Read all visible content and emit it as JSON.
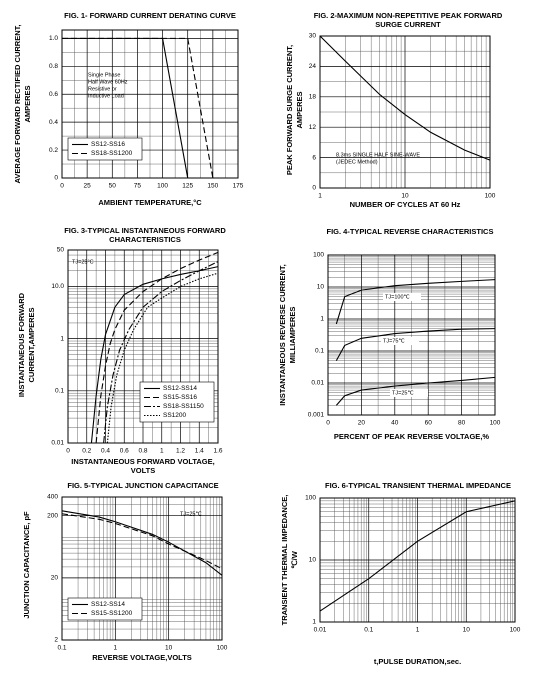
{
  "chart_data": [
    {
      "type": "line",
      "title": [
        "FIG. 1- FORWARD CURRENT DERATING CURVE"
      ],
      "xlabel": [
        "AMBIENT TEMPERATURE,°C"
      ],
      "ylabel": [
        "AVERAGE FORWARD RECTIFIED CURRENT,",
        "AMPERES"
      ],
      "xlim": [
        0,
        175
      ],
      "xticks": [
        0,
        25,
        50,
        75,
        100,
        125,
        150,
        175
      ],
      "ylim": [
        0,
        1.06
      ],
      "yticks": [
        0,
        0.2,
        0.4,
        0.6,
        0.8,
        {
          "value": 1,
          "label": "1.0"
        }
      ],
      "grid": true,
      "legend": "lower left",
      "annotations": [
        [
          "Single Phase",
          "Half Wave 60Hz",
          "Resistive or",
          "Inductive Load"
        ]
      ],
      "series": [
        {
          "name": "SS12-SS16",
          "color": "#000000",
          "style": "solid",
          "x": [
            0,
            100,
            125
          ],
          "values": [
            1,
            1,
            0
          ]
        },
        {
          "name": "SS18-SS1200",
          "color": "#000000",
          "style": "dashed",
          "x": [
            0,
            125,
            150
          ],
          "values": [
            1,
            1,
            0
          ]
        }
      ]
    },
    {
      "type": "line",
      "title": [
        "FIG. 2-MAXIMUM NON-REPETITIVE PEAK FORWARD",
        "SURGE CURRENT"
      ],
      "xlabel": [
        "NUMBER OF CYCLES AT 60 Hz"
      ],
      "ylabel": [
        "PEAK FORWARD SURGE CURRENT,",
        "AMPERES"
      ],
      "xscale": "log",
      "xlim": [
        1,
        100
      ],
      "xticks": [
        1,
        10,
        100
      ],
      "ylim": [
        0,
        30
      ],
      "yticks": [
        0,
        6,
        12,
        18,
        24,
        30
      ],
      "grid": true,
      "annotations": [
        [
          "8.3ms SINGLE HALF SINE-WAVE",
          "(JEDEC Method)"
        ]
      ],
      "series": [
        {
          "color": "#000000",
          "style": "solid",
          "x": [
            1,
            2,
            5,
            10,
            20,
            50,
            100
          ],
          "values": [
            30,
            25,
            18.5,
            14.5,
            11,
            7.5,
            5.5
          ]
        }
      ]
    },
    {
      "type": "line",
      "title": [
        "FIG. 3-TYPICAL INSTANTANEOUS FORWARD",
        "CHARACTERISTICS"
      ],
      "xlabel": [
        "INSTANTANEOUS FORWARD VOLTAGE,",
        "VOLTS"
      ],
      "ylabel": [
        "INSTANTANEOUS FORWARD",
        "CURRENT,AMPERES"
      ],
      "xlim": [
        0,
        1.6
      ],
      "xticks": [
        0,
        0.2,
        0.4,
        0.6,
        0.8,
        1.0,
        1.2,
        1.4,
        1.6
      ],
      "yscale": "log",
      "ylim": [
        0.01,
        50
      ],
      "yticks": [
        0.01,
        0.1,
        1,
        {
          "value": 10,
          "label": "10.0"
        },
        50
      ],
      "grid": true,
      "legend": "lower right",
      "annotations": [
        [
          "TJ=25°C"
        ]
      ],
      "series": [
        {
          "name": "SS12-SS14",
          "color": "#000000",
          "style": "solid",
          "x": [
            0.25,
            0.3,
            0.35,
            0.4,
            0.5,
            0.6,
            0.8,
            1.0,
            1.2,
            1.4,
            1.6
          ],
          "values": [
            0.01,
            0.08,
            0.4,
            1.2,
            4,
            7,
            11,
            14,
            17,
            20,
            24
          ]
        },
        {
          "name": "SS15-SS16",
          "color": "#000000",
          "style": "dashed",
          "x": [
            0.3,
            0.35,
            0.4,
            0.45,
            0.5,
            0.6,
            0.8,
            1.0,
            1.2,
            1.4,
            1.6
          ],
          "values": [
            0.01,
            0.08,
            0.3,
            0.8,
            1.5,
            3.5,
            8,
            14,
            22,
            32,
            45
          ]
        },
        {
          "name": "SS18-SS1150",
          "color": "#000000",
          "style": "dashdot",
          "x": [
            0.38,
            0.42,
            0.48,
            0.55,
            0.65,
            0.8,
            1.0,
            1.2,
            1.4,
            1.6
          ],
          "values": [
            0.01,
            0.05,
            0.2,
            0.6,
            1.5,
            4,
            8,
            13,
            20,
            30
          ]
        },
        {
          "name": "SS1200",
          "color": "#000000",
          "style": "dotted",
          "x": [
            0.42,
            0.46,
            0.52,
            0.6,
            0.7,
            0.85,
            1.0,
            1.2,
            1.4,
            1.6
          ],
          "values": [
            0.01,
            0.05,
            0.2,
            0.6,
            1.5,
            4,
            6,
            10,
            14,
            18
          ]
        }
      ]
    },
    {
      "type": "line",
      "title": [
        "FIG. 4-TYPICAL REVERSE CHARACTERISTICS"
      ],
      "xlabel": [
        "PERCENT OF PEAK REVERSE VOLTAGE,%"
      ],
      "ylabel": [
        "INSTANTANEOUS REVERSE CURRENT,",
        "MILLIAMPERES"
      ],
      "xlim": [
        0,
        100
      ],
      "xticks": [
        0,
        20,
        40,
        60,
        80,
        100
      ],
      "yscale": "log",
      "ylim": [
        0.001,
        100
      ],
      "yticks": [
        0.001,
        0.01,
        0.1,
        1,
        10,
        100
      ],
      "grid": true,
      "legend": "inline",
      "series": [
        {
          "name": "TJ=100℃",
          "color": "#000000",
          "style": "solid",
          "x": [
            5,
            10,
            20,
            40,
            60,
            80,
            100
          ],
          "values": [
            0.7,
            5,
            8,
            11,
            13,
            15,
            17
          ]
        },
        {
          "name": "TJ=75℃",
          "color": "#000000",
          "style": "solid",
          "x": [
            5,
            10,
            20,
            40,
            60,
            80,
            100
          ],
          "values": [
            0.05,
            0.15,
            0.25,
            0.35,
            0.42,
            0.48,
            0.5
          ]
        },
        {
          "name": "TJ=25℃",
          "color": "#000000",
          "style": "solid",
          "x": [
            5,
            10,
            20,
            40,
            60,
            80,
            100
          ],
          "values": [
            0.002,
            0.004,
            0.006,
            0.008,
            0.01,
            0.012,
            0.015
          ]
        }
      ]
    },
    {
      "type": "line",
      "title": [
        "FIG. 5-TYPICAL JUNCTION CAPACITANCE"
      ],
      "xlabel": [
        "REVERSE VOLTAGE,VOLTS"
      ],
      "ylabel": [
        "JUNCTION CAPACITANCE, pF"
      ],
      "xscale": "log",
      "xlim": [
        0.1,
        100
      ],
      "xticks": [
        0.1,
        1,
        10,
        100
      ],
      "yscale": "log",
      "ylim": [
        2,
        400
      ],
      "yticks": [
        2,
        20,
        200,
        400
      ],
      "grid": true,
      "legend": "lower left",
      "annotations": [
        [
          "TJ=25℃"
        ]
      ],
      "series": [
        {
          "name": "SS12-SS14",
          "color": "#000000",
          "style": "solid",
          "x": [
            0.1,
            0.5,
            1,
            5,
            10,
            50,
            100
          ],
          "values": [
            240,
            190,
            160,
            100,
            75,
            35,
            22
          ]
        },
        {
          "name": "SS15-SS1200",
          "color": "#000000",
          "style": "dashed",
          "x": [
            0.1,
            0.5,
            1,
            5,
            10,
            50,
            100
          ],
          "values": [
            215,
            175,
            150,
            95,
            70,
            38,
            28
          ]
        }
      ]
    },
    {
      "type": "line",
      "title": [
        "FIG. 6-TYPICAL TRANSIENT THERMAL IMPEDANCE"
      ],
      "xlabel": [
        "t,PULSE DURATION,sec."
      ],
      "ylabel": [
        "TRANSIENT THERMAL IMPEDANCE,",
        "℃/W"
      ],
      "xscale": "log",
      "xlim": [
        0.01,
        100
      ],
      "xticks": [
        0.01,
        0.1,
        1,
        10,
        100
      ],
      "yscale": "log",
      "ylim": [
        1,
        100
      ],
      "yticks": [
        1,
        10,
        100
      ],
      "grid": true,
      "series": [
        {
          "color": "#000000",
          "style": "solid",
          "x": [
            0.01,
            0.1,
            1,
            10,
            100
          ],
          "values": [
            1.5,
            5,
            20,
            60,
            90
          ]
        }
      ]
    }
  ]
}
